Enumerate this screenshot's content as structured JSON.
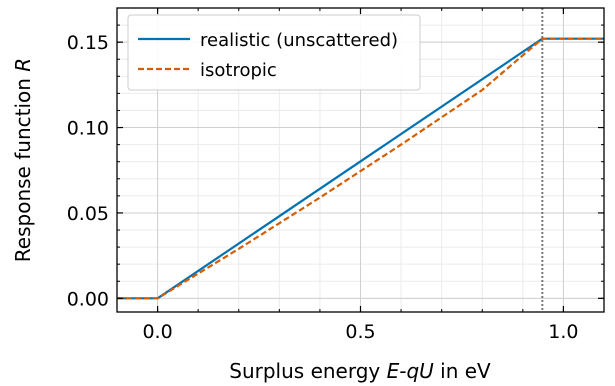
{
  "chart_data": {
    "type": "line",
    "xlabel_parts": [
      "Surplus energy ",
      "E-qU",
      " in eV"
    ],
    "ylabel_parts": [
      "Response function ",
      "R"
    ],
    "xlim": [
      -0.1,
      1.1
    ],
    "ylim": [
      -0.008,
      0.17
    ],
    "xticks": [
      0.0,
      0.5,
      1.0
    ],
    "xtick_labels": [
      "0.0",
      "0.5",
      "1.0"
    ],
    "yticks": [
      0.0,
      0.05,
      0.1,
      0.15
    ],
    "ytick_labels": [
      "0.00",
      "0.05",
      "0.10",
      "0.15"
    ],
    "grid": true,
    "legend_position": "top-left",
    "vline_x": 0.948,
    "vline_color": "#777777",
    "series": [
      {
        "name": "realistic (unscattered)",
        "color": "#0072B2",
        "style": "solid",
        "x": [
          -0.1,
          0.0,
          0.948,
          1.1
        ],
        "y": [
          0.0,
          0.0,
          0.152,
          0.152
        ]
      },
      {
        "name": "isotropic",
        "color": "#D55E00",
        "style": "dashed",
        "x": [
          -0.1,
          0.0,
          0.2,
          0.4,
          0.6,
          0.8,
          0.948,
          1.1
        ],
        "y": [
          0.0,
          0.0,
          0.029,
          0.059,
          0.09,
          0.122,
          0.152,
          0.152
        ]
      }
    ]
  }
}
